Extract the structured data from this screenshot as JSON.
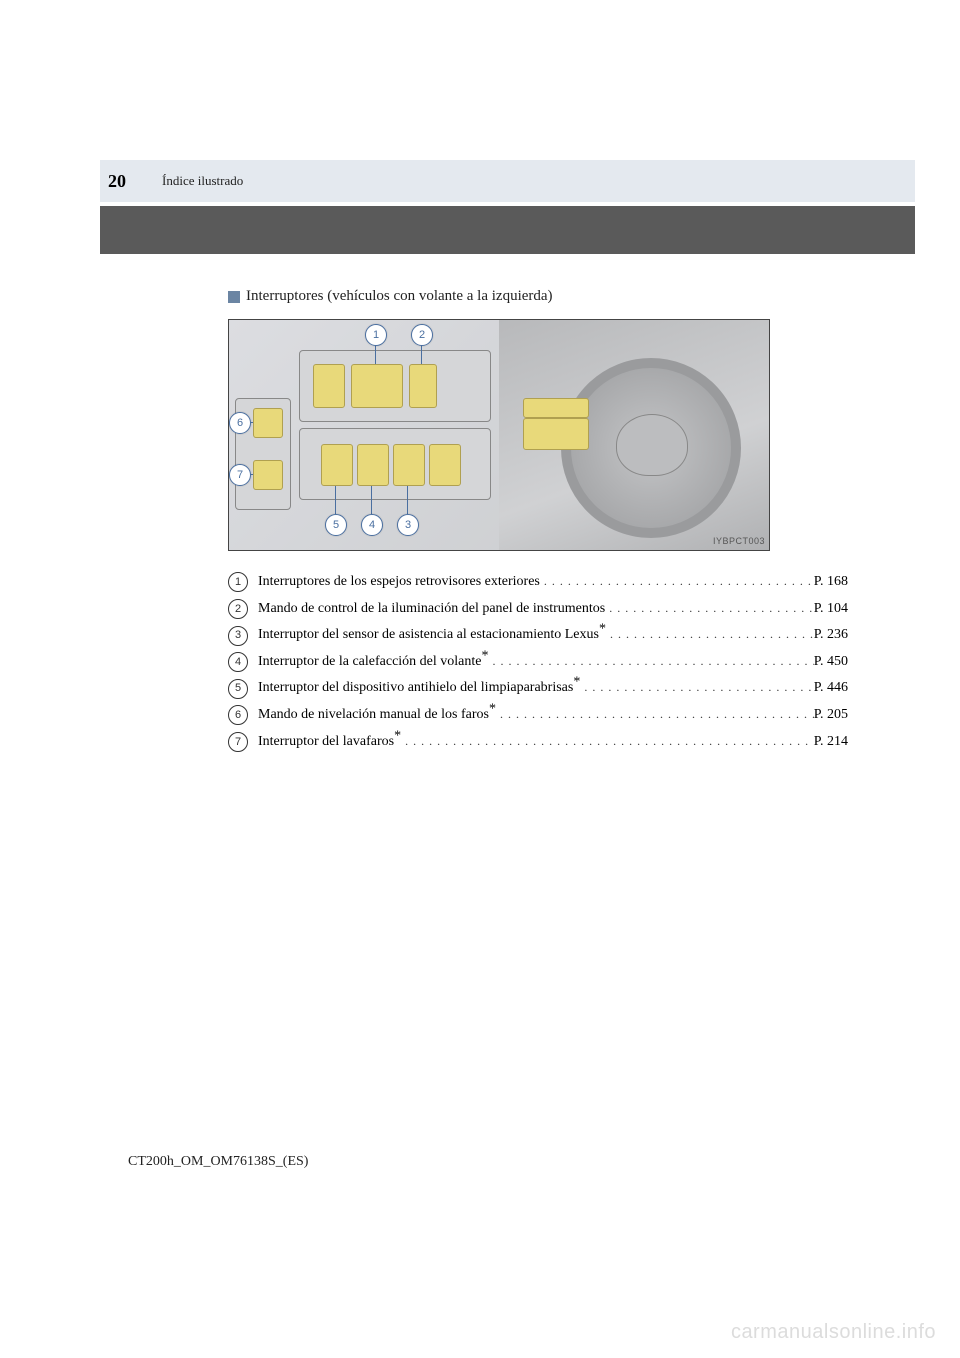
{
  "header": {
    "page_number": "20",
    "section": "Índice ilustrado"
  },
  "subsection": {
    "title": "Interruptores (vehículos con volante a la izquierda)"
  },
  "diagram": {
    "image_code": "IYBPCT003",
    "callouts": {
      "c1": "1",
      "c2": "2",
      "c3": "3",
      "c4": "4",
      "c5": "5",
      "c6": "6",
      "c7": "7"
    }
  },
  "list": [
    {
      "num": "1",
      "text": "Interruptores de los espejos retrovisores exteriores",
      "asterisk": false,
      "page": "P. 168"
    },
    {
      "num": "2",
      "text": "Mando de control de la iluminación del panel de instrumentos",
      "asterisk": false,
      "page": "P. 104"
    },
    {
      "num": "3",
      "text": "Interruptor del sensor de asistencia al estacionamiento Lexus",
      "asterisk": true,
      "page": "P. 236"
    },
    {
      "num": "4",
      "text": "Interruptor de la calefacción del volante",
      "asterisk": true,
      "page": "P. 450"
    },
    {
      "num": "5",
      "text": "Interruptor del dispositivo antihielo del limpiaparabrisas",
      "asterisk": true,
      "page": "P. 446"
    },
    {
      "num": "6",
      "text": "Mando de nivelación manual de los faros",
      "asterisk": true,
      "page": "P. 205"
    },
    {
      "num": "7",
      "text": "Interruptor del lavafaros",
      "asterisk": true,
      "page": "P. 214"
    }
  ],
  "footer": {
    "doc_code": "CT200h_OM_OM76138S_(ES)"
  },
  "watermark": "carmanualsonline.info",
  "colors": {
    "header_band": "#e4e9ef",
    "dark_band": "#5a5a5a",
    "accent_square": "#6b85a3",
    "callout_border": "#4a6fa0",
    "switch_bg": "#e8d97a"
  }
}
